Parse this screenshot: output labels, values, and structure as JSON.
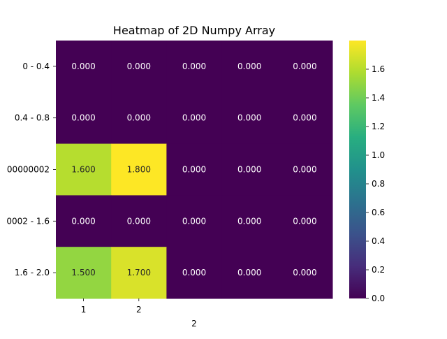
{
  "chart_data": {
    "type": "heatmap",
    "title": "Heatmap of 2D Numpy Array",
    "xlabel": "2",
    "ylabel": "",
    "x_tick_labels": [
      "1",
      "2",
      "",
      "",
      ""
    ],
    "y_tick_labels": [
      "0 - 0.4",
      "0.4 - 0.8",
      "00000002",
      "0002 - 1.6",
      "1.6 - 2.0"
    ],
    "values": [
      [
        0.0,
        0.0,
        0.0,
        0.0,
        0.0
      ],
      [
        0.0,
        0.0,
        0.0,
        0.0,
        0.0
      ],
      [
        1.6,
        1.8,
        0.0,
        0.0,
        0.0
      ],
      [
        0.0,
        0.0,
        0.0,
        0.0,
        0.0
      ],
      [
        1.5,
        1.7,
        0.0,
        0.0,
        0.0
      ]
    ],
    "cell_labels": [
      [
        "0.000",
        "0.000",
        "0.000",
        "0.000",
        "0.000"
      ],
      [
        "0.000",
        "0.000",
        "0.000",
        "0.000",
        "0.000"
      ],
      [
        "1.600",
        "1.800",
        "0.000",
        "0.000",
        "0.000"
      ],
      [
        "0.000",
        "0.000",
        "0.000",
        "0.000",
        "0.000"
      ],
      [
        "1.500",
        "1.700",
        "0.000",
        "0.000",
        "0.000"
      ]
    ],
    "colormap": "viridis",
    "vmin": 0.0,
    "vmax": 1.8,
    "colorbar_ticks": [
      0.0,
      0.2,
      0.4,
      0.6,
      0.8,
      1.0,
      1.2,
      1.4,
      1.6
    ],
    "colorbar_tick_labels": [
      "0.0",
      "0.2",
      "0.4",
      "0.6",
      "0.8",
      "1.0",
      "1.2",
      "1.4",
      "1.6"
    ]
  }
}
